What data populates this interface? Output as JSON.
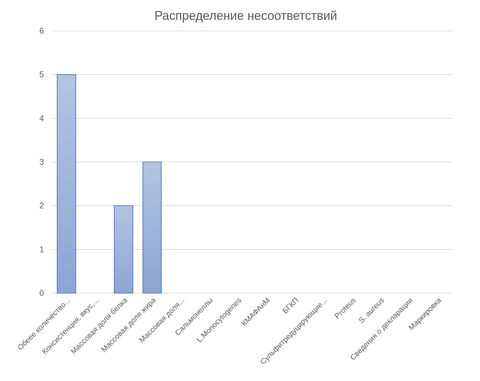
{
  "chart_data": {
    "type": "bar",
    "title": "Распределение несоответствий",
    "xlabel": "",
    "ylabel": "",
    "ylim": [
      0,
      6
    ],
    "yticks": [
      0,
      1,
      2,
      3,
      4,
      5,
      6
    ],
    "grid": true,
    "legend": "none",
    "categories": [
      "Обеее количество...",
      "Консистенция, вкус,...",
      "Массовая доля белка",
      "Массовая доля жира",
      "Массовая доля...",
      "Сальмонеллы",
      "L.Monocytogenes",
      "КМАФАнМ",
      "БГКП",
      "Сульфитредуцирующие...",
      "Proteus",
      "S. aureus",
      "Сведения о декларации",
      "Маркировка"
    ],
    "values": [
      5,
      0,
      2,
      3,
      0,
      0,
      0,
      0,
      0,
      0,
      0,
      0,
      0,
      0
    ],
    "colors": {
      "bar_top": "#b4c4e2",
      "bar_bottom": "#8ca6d3",
      "bar_border": "#4a72b5",
      "grid": "#d9d9d9",
      "text": "#595959"
    }
  }
}
